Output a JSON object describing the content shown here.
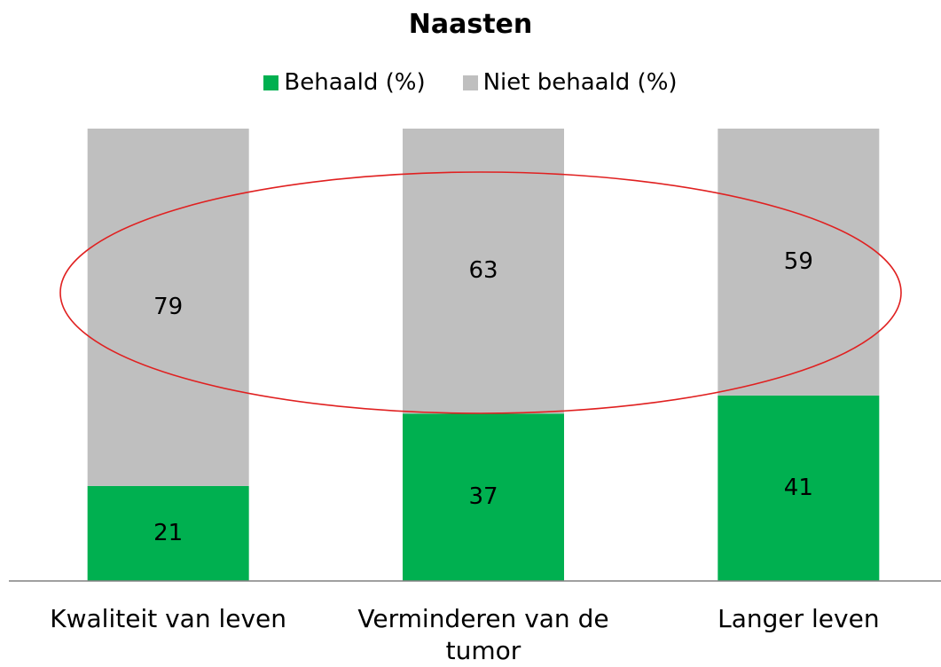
{
  "chart_data": {
    "type": "stacked_bar",
    "title": "Naasten",
    "categories": [
      "Kwaliteit van leven",
      "Verminderen van de tumor",
      "Langer leven"
    ],
    "series": [
      {
        "name": "Behaald (%)",
        "color": "#00b050",
        "values": [
          21,
          37,
          41
        ]
      },
      {
        "name": "Niet behaald (%)",
        "color": "#bfbfbf",
        "values": [
          79,
          63,
          59
        ]
      }
    ],
    "ylim": [
      0,
      100
    ],
    "legend": "top"
  }
}
